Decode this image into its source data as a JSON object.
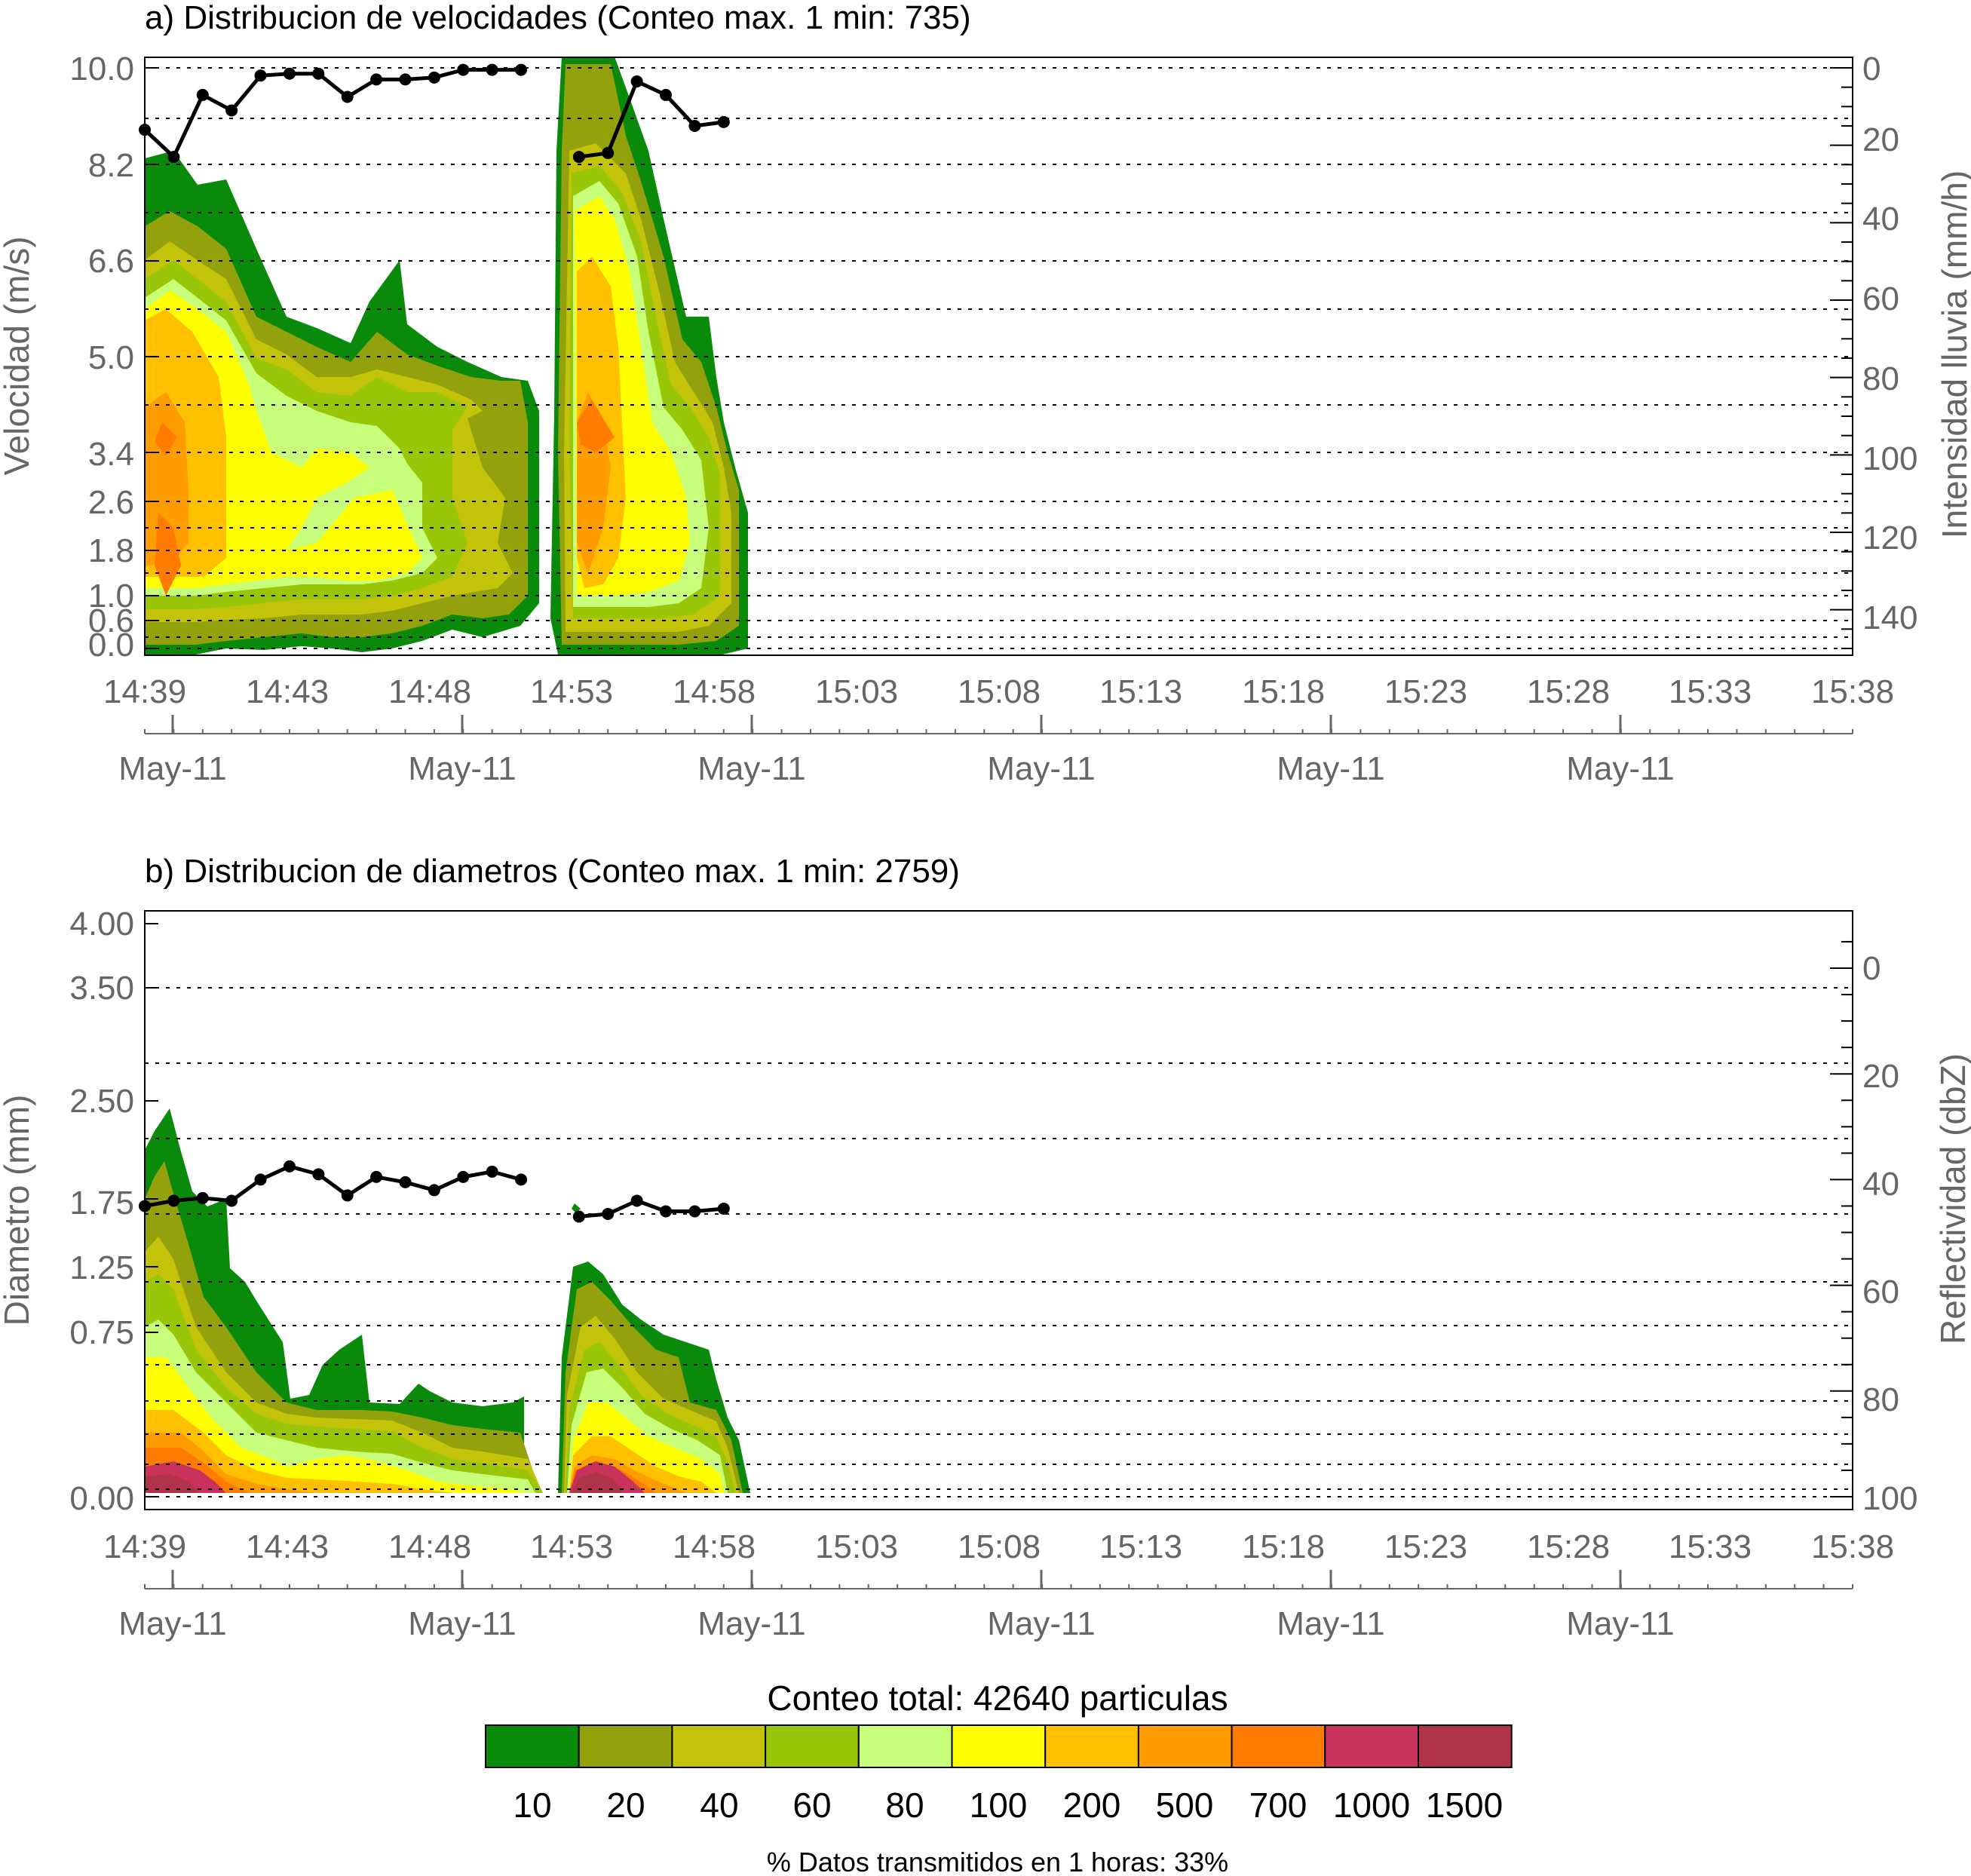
{
  "chart_data": [
    {
      "type": "heatmap",
      "title": "a) Distribucion de velocidades (Conteo max. 1 min: 735)",
      "ylabel": "Velocidad (m/s)",
      "ylabel_right": "Intensidad lluvia (mm/h)",
      "x_tick_labels": [
        "14:39",
        "14:43",
        "14:48",
        "14:53",
        "14:58",
        "15:03",
        "15:08",
        "15:13",
        "15:18",
        "15:23",
        "15:28",
        "15:33",
        "15:38"
      ],
      "date_tick_labels": [
        "May-11",
        "May-11",
        "May-11",
        "May-11",
        "May-11",
        "May-11"
      ],
      "y_tick_labels": [
        "10.0",
        "8.2",
        "6.6",
        "5.0",
        "3.4",
        "2.6",
        "1.8",
        "1.0",
        "0.6",
        "0.0"
      ],
      "y_right_tick_labels": [
        "0",
        "20",
        "40",
        "60",
        "80",
        "100",
        "120",
        "140"
      ],
      "ylim": [
        0,
        10
      ],
      "y_right_range": [
        0,
        150
      ],
      "grid": "horizontal dotted",
      "velocity_bins": [
        0.0,
        0.6,
        1.0,
        1.8,
        2.6,
        3.4,
        5.0,
        6.6,
        8.2,
        10.0
      ],
      "series": [
        {
          "type": "line",
          "axis": "right",
          "values": [
            {
              "x": "14:39",
              "y": 16
            },
            {
              "x": "14:40",
              "y": 23
            },
            {
              "x": "14:41",
              "y": 7
            },
            {
              "x": "14:42",
              "y": 11
            },
            {
              "x": "14:43",
              "y": 2
            },
            {
              "x": "14:44",
              "y": 1.5
            },
            {
              "x": "14:45",
              "y": 1.5
            },
            {
              "x": "14:46",
              "y": 7.5
            },
            {
              "x": "14:47",
              "y": 3
            },
            {
              "x": "14:48",
              "y": 3
            },
            {
              "x": "14:49",
              "y": 2.5
            },
            {
              "x": "14:50",
              "y": 0.5
            },
            {
              "x": "14:51",
              "y": 0.5
            },
            {
              "x": "14:52",
              "y": 0.5
            },
            {
              "x": "14:54",
              "y": 23
            },
            {
              "x": "14:55",
              "y": 22
            },
            {
              "x": "14:56",
              "y": 3.5
            },
            {
              "x": "14:57",
              "y": 7
            },
            {
              "x": "14:58",
              "y": 15
            },
            {
              "x": "14:59",
              "y": 14
            }
          ]
        }
      ]
    },
    {
      "type": "heatmap",
      "title": "b) Distribucion de diametros (Conteo max. 1 min: 2759)",
      "ylabel": "Diametro (mm)",
      "ylabel_right": "Reflectividad (dbZ)",
      "x_tick_labels": [
        "14:39",
        "14:43",
        "14:48",
        "14:53",
        "14:58",
        "15:03",
        "15:08",
        "15:13",
        "15:18",
        "15:23",
        "15:28",
        "15:33",
        "15:38"
      ],
      "date_tick_labels": [
        "May-11",
        "May-11",
        "May-11",
        "May-11",
        "May-11",
        "May-11"
      ],
      "y_tick_labels": [
        "4.00",
        "3.50",
        "2.50",
        "1.75",
        "1.25",
        "0.75",
        "0.00"
      ],
      "y_right_tick_labels": [
        "0",
        "20",
        "40",
        "60",
        "80",
        "100"
      ],
      "ylim": [
        0,
        4
      ],
      "y_right_range": [
        -7,
        100
      ],
      "grid": "horizontal dotted",
      "diameter_bins": [
        0.0,
        0.25,
        0.5,
        0.75,
        1.0,
        1.25,
        1.5,
        1.75,
        2.0,
        2.5,
        3.0,
        3.5
      ],
      "series": [
        {
          "type": "line",
          "axis": "right",
          "values": [
            {
              "x": "14:39",
              "y": 45
            },
            {
              "x": "14:40",
              "y": 44
            },
            {
              "x": "14:41",
              "y": 43.5
            },
            {
              "x": "14:42",
              "y": 44
            },
            {
              "x": "14:43",
              "y": 40
            },
            {
              "x": "14:44",
              "y": 37.5
            },
            {
              "x": "14:45",
              "y": 39
            },
            {
              "x": "14:46",
              "y": 43
            },
            {
              "x": "14:47",
              "y": 39.5
            },
            {
              "x": "14:48",
              "y": 40.5
            },
            {
              "x": "14:49",
              "y": 42
            },
            {
              "x": "14:50",
              "y": 39.5
            },
            {
              "x": "14:51",
              "y": 38.5
            },
            {
              "x": "14:52",
              "y": 40
            },
            {
              "x": "14:54",
              "y": 47
            },
            {
              "x": "14:55",
              "y": 46.5
            },
            {
              "x": "14:56",
              "y": 44
            },
            {
              "x": "14:57",
              "y": 46
            },
            {
              "x": "14:58",
              "y": 46
            },
            {
              "x": "14:59",
              "y": 45.5
            }
          ]
        }
      ]
    }
  ],
  "legend": {
    "title": "Conteo total: 42640 particulas",
    "placement": "bottom-center",
    "levels": [
      "10",
      "20",
      "40",
      "60",
      "80",
      "100",
      "200",
      "500",
      "700",
      "1000",
      "1500"
    ],
    "colors": [
      "#0a8a0a",
      "#93a10c",
      "#c3c309",
      "#9ac60a",
      "#c8ff7a",
      "#ffff00",
      "#ffc000",
      "#ff9c00",
      "#ff7c00",
      "#c8325c",
      "#b03448"
    ]
  },
  "footnote": "% Datos transmitidos en 1 horas: 33%"
}
